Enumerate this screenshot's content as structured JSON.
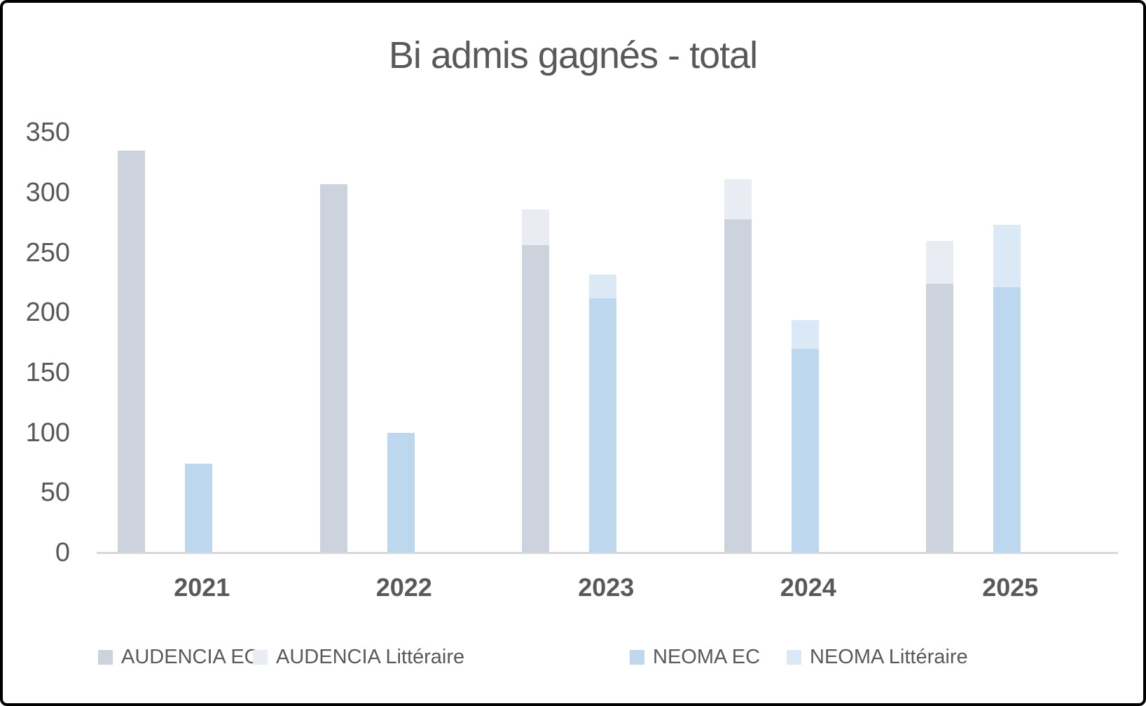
{
  "title": "Bi admis gagnés - total",
  "colors": {
    "text": "#595959",
    "axis_line": "#d9d9d9",
    "frame_border": "#000000",
    "background": "#ffffff",
    "audencia_ec": "#ccd3dd",
    "audencia_litteraire": "#e9edf3",
    "neoma_ec": "#bcd7ee",
    "neoma_litteraire": "#dbe8f6"
  },
  "chart_data": {
    "type": "bar",
    "stacked": true,
    "title": "Bi admis gagnés - total",
    "xlabel": "",
    "ylabel": "",
    "ylim": [
      0,
      350
    ],
    "y_ticks": [
      0,
      50,
      100,
      150,
      200,
      250,
      300,
      350
    ],
    "grid": false,
    "legend_position": "bottom",
    "categories": [
      "2021",
      "2022",
      "2023",
      "2024",
      "2025"
    ],
    "series": [
      {
        "name": "AUDENCIA EC",
        "stack": "AUDENCIA",
        "color": "#ccd3dd",
        "values": [
          335,
          307,
          256,
          278,
          224
        ]
      },
      {
        "name": "AUDENCIA Littéraire",
        "stack": "AUDENCIA",
        "color": "#e9edf3",
        "values": [
          0,
          0,
          30,
          33,
          36
        ]
      },
      {
        "name": "NEOMA EC",
        "stack": "NEOMA",
        "color": "#bcd7ee",
        "values": [
          74,
          100,
          212,
          170,
          221
        ]
      },
      {
        "name": "NEOMA Littéraire",
        "stack": "NEOMA",
        "color": "#dbe8f6",
        "values": [
          0,
          0,
          20,
          24,
          52
        ]
      }
    ],
    "stack_totals": {
      "AUDENCIA": [
        335,
        307,
        286,
        311,
        260
      ],
      "NEOMA": [
        74,
        100,
        232,
        194,
        273
      ]
    }
  }
}
